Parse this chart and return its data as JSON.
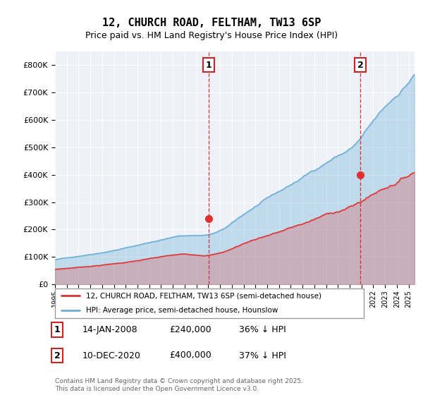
{
  "title": "12, CHURCH ROAD, FELTHAM, TW13 6SP",
  "subtitle": "Price paid vs. HM Land Registry's House Price Index (HPI)",
  "legend_line1": "12, CHURCH ROAD, FELTHAM, TW13 6SP (semi-detached house)",
  "legend_line2": "HPI: Average price, semi-detached house, Hounslow",
  "annotation1_label": "1",
  "annotation1_date": "14-JAN-2008",
  "annotation1_price": 240000,
  "annotation1_hpi": "36% ↓ HPI",
  "annotation2_label": "2",
  "annotation2_date": "10-DEC-2020",
  "annotation2_price": 400000,
  "annotation2_hpi": "37% ↓ HPI",
  "footer": "Contains HM Land Registry data © Crown copyright and database right 2025.\nThis data is licensed under the Open Government Licence v3.0.",
  "hpi_color": "#6baed6",
  "price_color": "#e03030",
  "annotation_box_color": "#cc2222",
  "ylim_min": 0,
  "ylim_max": 850000,
  "plot_bg_color": "#eef2f8"
}
